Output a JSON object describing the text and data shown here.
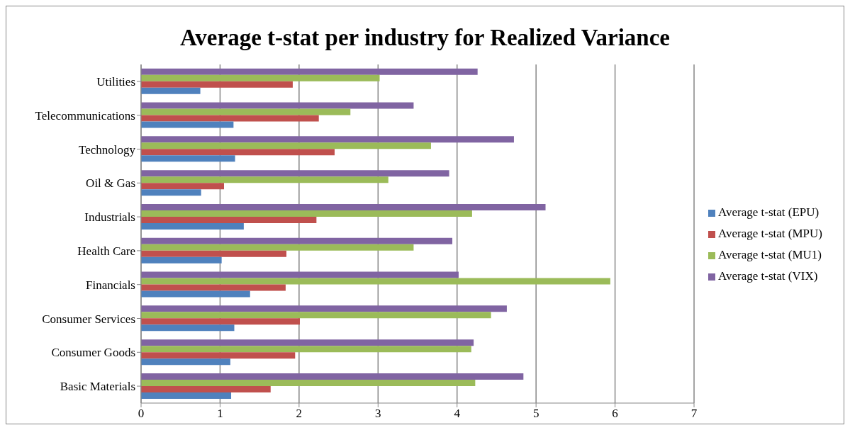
{
  "chart_data": {
    "type": "bar",
    "orientation": "horizontal",
    "title": "Average t-stat per industry for Realized Variance",
    "categories": [
      "Utilities",
      "Telecommunications",
      "Technology",
      "Oil & Gas",
      "Industrials",
      "Health Care",
      "Financials",
      "Consumer Services",
      "Consumer Goods",
      "Basic Materials"
    ],
    "series": [
      {
        "name": "Average t-stat (VIX)",
        "color": "#8064a2",
        "values": [
          4.26,
          3.45,
          4.72,
          3.9,
          5.12,
          3.94,
          4.02,
          4.63,
          4.21,
          4.84
        ]
      },
      {
        "name": "Average t-stat (MU1)",
        "color": "#9bbb59",
        "values": [
          3.02,
          2.65,
          3.67,
          3.13,
          4.19,
          3.45,
          5.94,
          4.43,
          4.18,
          4.23
        ]
      },
      {
        "name": "Average t-stat (MPU)",
        "color": "#c0504d",
        "values": [
          1.92,
          2.25,
          2.45,
          1.05,
          2.22,
          1.84,
          1.83,
          2.01,
          1.95,
          1.64
        ]
      },
      {
        "name": "Average t-stat (EPU)",
        "color": "#4f81bd",
        "values": [
          0.75,
          1.17,
          1.19,
          0.76,
          1.3,
          1.02,
          1.38,
          1.18,
          1.13,
          1.14
        ]
      }
    ],
    "xlim": [
      0,
      7
    ],
    "xticks": [
      0,
      1,
      2,
      3,
      4,
      5,
      6,
      7
    ],
    "grid": "x",
    "legend": "right"
  }
}
